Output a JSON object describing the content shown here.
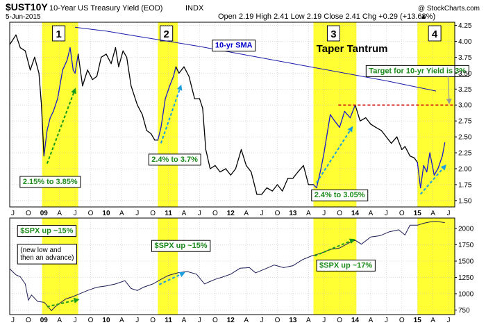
{
  "header": {
    "symbol": "$UST10Y",
    "name": "10-Year US Treasury Yield (EOD)",
    "exchange": "INDX",
    "date": "5-Jun-2015",
    "ohlc": "Open 2.19  High 2.41  Low 2.19  Close 2.41  Chg +0.29 (+13.68%)",
    "watermark": "@ StockCharts.com",
    "arrow_glyph": "▲"
  },
  "colors": {
    "highlight": "#ffff33",
    "yield_line": "#000000",
    "yield_rise": "#1a1acc",
    "sma": "#1a1aaa",
    "spx_line": "#1a1a55",
    "green_arrow": "#1a9a1a",
    "blue_arrow": "#1aa0e0",
    "target": "#cc0000",
    "grid": "#bbbbbb"
  },
  "chart_data": [
    {
      "type": "line",
      "panel": "top",
      "ylim": [
        1.4,
        4.3
      ],
      "yticks": [
        1.5,
        1.75,
        2.0,
        2.25,
        2.5,
        2.75,
        3.0,
        3.25,
        3.5,
        3.75,
        4.0,
        4.25
      ],
      "ytick_labels": [
        "1.50",
        "1.75",
        "2.00",
        "2.25",
        "2.50",
        "2.75",
        "3.00",
        "3.25",
        "3.50",
        "3.75",
        "4.00",
        "4.25"
      ],
      "xlim": [
        2008.45,
        2015.6
      ],
      "xticks": [
        {
          "x": 2008.5,
          "label": "J"
        },
        {
          "x": 2008.75,
          "label": "O"
        },
        {
          "x": 2009.0,
          "label": "09",
          "bold": true
        },
        {
          "x": 2009.25,
          "label": "A"
        },
        {
          "x": 2009.5,
          "label": "J"
        },
        {
          "x": 2009.75,
          "label": "O"
        },
        {
          "x": 2010.0,
          "label": "10",
          "bold": true
        },
        {
          "x": 2010.25,
          "label": "A"
        },
        {
          "x": 2010.5,
          "label": "J"
        },
        {
          "x": 2010.75,
          "label": "O"
        },
        {
          "x": 2011.0,
          "label": "11",
          "bold": true
        },
        {
          "x": 2011.25,
          "label": "A"
        },
        {
          "x": 2011.5,
          "label": "J"
        },
        {
          "x": 2011.75,
          "label": "O"
        },
        {
          "x": 2012.0,
          "label": "12",
          "bold": true
        },
        {
          "x": 2012.25,
          "label": "A"
        },
        {
          "x": 2012.5,
          "label": "J"
        },
        {
          "x": 2012.75,
          "label": "O"
        },
        {
          "x": 2013.0,
          "label": "13",
          "bold": true
        },
        {
          "x": 2013.25,
          "label": "A"
        },
        {
          "x": 2013.5,
          "label": "J"
        },
        {
          "x": 2013.75,
          "label": "O"
        },
        {
          "x": 2014.0,
          "label": "14",
          "bold": true
        },
        {
          "x": 2014.25,
          "label": "A"
        },
        {
          "x": 2014.5,
          "label": "J"
        },
        {
          "x": 2014.75,
          "label": "O"
        },
        {
          "x": 2015.0,
          "label": "15",
          "bold": true
        },
        {
          "x": 2015.25,
          "label": "A"
        },
        {
          "x": 2015.5,
          "label": "J"
        }
      ],
      "highlights": [
        {
          "label": "1",
          "x0": 2008.97,
          "x1": 2009.55
        },
        {
          "label": "2",
          "x0": 2010.83,
          "x1": 2011.15
        },
        {
          "label": "3",
          "x0": 2013.33,
          "x1": 2014.02
        },
        {
          "label": "4",
          "x0": 2015.0,
          "x1": 2015.6
        }
      ],
      "yield": {
        "x": [
          2008.45,
          2008.55,
          2008.62,
          2008.7,
          2008.78,
          2008.85,
          2008.92,
          2008.96,
          2009.0,
          2009.05,
          2009.1,
          2009.15,
          2009.22,
          2009.3,
          2009.37,
          2009.42,
          2009.47,
          2009.5,
          2009.55,
          2009.62,
          2009.7,
          2009.78,
          2009.85,
          2009.92,
          2010.0,
          2010.08,
          2010.15,
          2010.2,
          2010.27,
          2010.33,
          2010.4,
          2010.5,
          2010.58,
          2010.65,
          2010.72,
          2010.78,
          2010.83,
          2010.88,
          2010.95,
          2011.02,
          2011.08,
          2011.12,
          2011.17,
          2011.25,
          2011.33,
          2011.42,
          2011.5,
          2011.55,
          2011.6,
          2011.67,
          2011.75,
          2011.83,
          2011.92,
          2012.0,
          2012.08,
          2012.17,
          2012.25,
          2012.33,
          2012.42,
          2012.5,
          2012.58,
          2012.67,
          2012.75,
          2012.83,
          2012.92,
          2013.0,
          2013.08,
          2013.17,
          2013.25,
          2013.33,
          2013.38,
          2013.45,
          2013.5,
          2013.55,
          2013.6,
          2013.67,
          2013.75,
          2013.83,
          2013.92,
          2014.0,
          2014.08,
          2014.17,
          2014.25,
          2014.33,
          2014.42,
          2014.5,
          2014.58,
          2014.67,
          2014.75,
          2014.8,
          2014.88,
          2014.95,
          2015.0,
          2015.05,
          2015.1,
          2015.15,
          2015.2,
          2015.27,
          2015.33,
          2015.4,
          2015.44
        ],
        "y": [
          3.95,
          4.1,
          3.9,
          3.85,
          3.55,
          3.75,
          3.5,
          3.0,
          2.2,
          2.6,
          2.8,
          2.9,
          3.1,
          3.55,
          3.7,
          3.9,
          3.55,
          3.5,
          3.8,
          3.3,
          3.55,
          3.4,
          3.45,
          3.75,
          3.8,
          3.65,
          3.9,
          3.6,
          3.85,
          3.75,
          3.3,
          3.0,
          2.85,
          2.6,
          2.55,
          2.45,
          2.45,
          2.65,
          3.1,
          3.3,
          3.45,
          3.6,
          3.5,
          3.6,
          3.45,
          3.1,
          3.1,
          2.95,
          2.3,
          2.0,
          2.05,
          1.95,
          2.0,
          1.9,
          2.0,
          2.3,
          2.05,
          1.95,
          1.6,
          1.6,
          1.7,
          1.65,
          1.75,
          1.65,
          1.85,
          1.85,
          1.95,
          2.05,
          1.75,
          1.75,
          1.7,
          2.0,
          2.25,
          2.55,
          2.85,
          2.75,
          2.65,
          2.9,
          2.8,
          3.0,
          2.75,
          2.8,
          2.7,
          2.65,
          2.6,
          2.5,
          2.4,
          2.5,
          2.3,
          2.35,
          2.2,
          2.17,
          2.1,
          1.7,
          2.05,
          1.95,
          2.25,
          1.9,
          2.0,
          2.2,
          2.41
        ]
      },
      "sma": {
        "x": [
          2009.5,
          2010.0,
          2010.5,
          2011.0,
          2011.5,
          2012.0,
          2012.5,
          2013.0,
          2013.5,
          2014.0,
          2014.5,
          2015.0,
          2015.3
        ],
        "y": [
          4.22,
          4.16,
          4.08,
          4.0,
          3.92,
          3.83,
          3.74,
          3.65,
          3.56,
          3.47,
          3.38,
          3.28,
          3.22
        ]
      },
      "target_level": 3.0,
      "target_start_x": 2013.73,
      "arrows": [
        {
          "x0": 2009.05,
          "y0": 2.08,
          "x1": 2009.5,
          "y1": 3.25,
          "color": "green"
        },
        {
          "x0": 2010.88,
          "y0": 2.4,
          "x1": 2011.2,
          "y1": 3.3,
          "color": "blue"
        },
        {
          "x0": 2013.38,
          "y0": 1.78,
          "x1": 2013.95,
          "y1": 2.65,
          "color": "blue"
        },
        {
          "x0": 2015.05,
          "y0": 1.6,
          "x1": 2015.45,
          "y1": 2.05,
          "color": "blue"
        }
      ],
      "annotations": [
        {
          "text": "2.15% to 3.85%",
          "x": 2009.1,
          "y": 1.76,
          "boxed": true,
          "style": "green"
        },
        {
          "text": "2.4% to 3.7%",
          "x": 2011.1,
          "y": 2.11,
          "boxed": true,
          "style": "green"
        },
        {
          "text": "2.4% to 3.05%",
          "x": 2013.75,
          "y": 1.55,
          "boxed": true,
          "style": "green"
        },
        {
          "text": "10-yr SMA",
          "x": 2012.05,
          "y": 3.9,
          "boxed": true,
          "style": "blue"
        },
        {
          "text": "Taper Tantrum",
          "x": 2013.95,
          "y": 3.83,
          "boxed": false,
          "style": "big"
        },
        {
          "text": "Target for 10-yr Yield is 3%",
          "x": 2015.0,
          "y": 3.5,
          "boxed": true,
          "style": "green"
        }
      ]
    },
    {
      "type": "line",
      "panel": "bottom",
      "ylim": [
        680,
        2160
      ],
      "yticks": [
        750,
        1000,
        1250,
        1500,
        1750,
        2000
      ],
      "ytick_labels": [
        "750",
        "1000",
        "1250",
        "1500",
        "1750",
        "2000"
      ],
      "spx": {
        "x": [
          2008.45,
          2008.55,
          2008.62,
          2008.7,
          2008.75,
          2008.8,
          2008.9,
          2009.0,
          2009.05,
          2009.12,
          2009.18,
          2009.25,
          2009.35,
          2009.45,
          2009.55,
          2009.7,
          2009.85,
          2010.0,
          2010.15,
          2010.3,
          2010.4,
          2010.5,
          2010.6,
          2010.75,
          2010.9,
          2011.0,
          2011.15,
          2011.3,
          2011.45,
          2011.58,
          2011.65,
          2011.75,
          2011.85,
          2012.0,
          2012.15,
          2012.3,
          2012.4,
          2012.55,
          2012.7,
          2012.85,
          2013.0,
          2013.15,
          2013.3,
          2013.45,
          2013.6,
          2013.75,
          2013.9,
          2014.0,
          2014.1,
          2014.25,
          2014.4,
          2014.55,
          2014.7,
          2014.8,
          2014.88,
          2015.0,
          2015.1,
          2015.2,
          2015.3,
          2015.44
        ],
        "y": [
          1380,
          1290,
          1260,
          1150,
          900,
          980,
          880,
          870,
          820,
          740,
          800,
          850,
          920,
          950,
          990,
          1050,
          1100,
          1120,
          1150,
          1200,
          1080,
          1050,
          1100,
          1150,
          1230,
          1280,
          1320,
          1340,
          1300,
          1150,
          1180,
          1220,
          1250,
          1300,
          1390,
          1400,
          1320,
          1380,
          1440,
          1400,
          1430,
          1520,
          1580,
          1620,
          1680,
          1700,
          1780,
          1820,
          1760,
          1870,
          1890,
          1950,
          1980,
          1900,
          2050,
          2050,
          2080,
          2100,
          2110,
          2090
        ]
      },
      "arrows": [
        {
          "x0": 2009.05,
          "y0": 800,
          "x1": 2009.55,
          "y1": 910,
          "color": "green"
        },
        {
          "x0": 2010.85,
          "y0": 1140,
          "x1": 2011.25,
          "y1": 1320,
          "color": "blue"
        },
        {
          "x0": 2013.35,
          "y0": 1580,
          "x1": 2013.98,
          "y1": 1830,
          "color": "green"
        }
      ],
      "annotations": [
        {
          "text": "$SPX up ~15%",
          "x": 2008.62,
          "y": 1930,
          "boxed": true,
          "style": "green",
          "anchor": "start"
        },
        {
          "text": "(new low and",
          "x": 2008.62,
          "y": 1640,
          "boxed": false,
          "style": "black",
          "anchor": "start"
        },
        {
          "text": "then an advance)",
          "x": 2008.62,
          "y": 1520,
          "boxed": false,
          "style": "black",
          "anchor": "start"
        },
        {
          "text": "$SPX up ~15%",
          "x": 2011.2,
          "y": 1700,
          "boxed": true,
          "style": "green"
        },
        {
          "text": "$SPX up ~17%",
          "x": 2013.85,
          "y": 1400,
          "boxed": true,
          "style": "green"
        }
      ]
    }
  ]
}
